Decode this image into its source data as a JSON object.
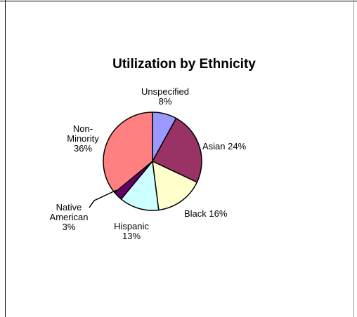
{
  "chart_data": {
    "type": "pie",
    "title": "Utilization by Ethnicity",
    "slices": [
      {
        "name": "Unspecified",
        "value": 8,
        "label_lines": [
          "Unspecified",
          "8%"
        ],
        "color": "#9999ff"
      },
      {
        "name": "Asian",
        "value": 24,
        "label_lines": [
          "Asian 24%"
        ],
        "color": "#993366"
      },
      {
        "name": "Black",
        "value": 16,
        "label_lines": [
          "Black 16%"
        ],
        "color": "#ffffcc"
      },
      {
        "name": "Hispanic",
        "value": 13,
        "label_lines": [
          "Hispanic",
          "13%"
        ],
        "color": "#ccffff"
      },
      {
        "name": "Native American",
        "value": 3,
        "label_lines": [
          "Native",
          "American",
          "3%"
        ],
        "color": "#660066"
      },
      {
        "name": "Non-Minority",
        "value": 36,
        "label_lines": [
          "Non-",
          "Minority",
          "36%"
        ],
        "color": "#ff8080"
      }
    ],
    "legend": "none",
    "start_angle_deg": 0,
    "direction": "clockwise"
  }
}
